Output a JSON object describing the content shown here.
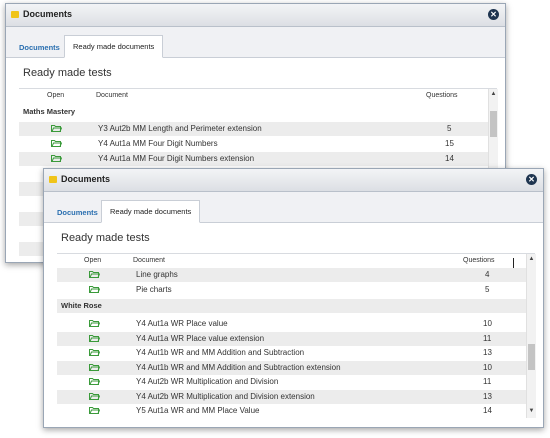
{
  "back_window": {
    "title": "Documents",
    "tabs": [
      {
        "label": "Documents",
        "active": false
      },
      {
        "label": "Ready made documents",
        "active": true
      }
    ],
    "heading": "Ready made tests",
    "columns": {
      "open": "Open",
      "document": "Document",
      "questions": "Questions"
    },
    "group": "Maths Mastery",
    "rows": [
      {
        "document": "Y3 Aut2b MM Length and Perimeter extension",
        "questions": "5"
      },
      {
        "document": "Y4 Aut1a MM Four Digit Numbers",
        "questions": "15"
      },
      {
        "document": "Y4 Aut1a MM Four Digit Numbers extension",
        "questions": "14"
      }
    ]
  },
  "front_window": {
    "title": "Documents",
    "tabs": [
      {
        "label": "Documents",
        "active": false
      },
      {
        "label": "Ready made documents",
        "active": true
      }
    ],
    "heading": "Ready made tests",
    "columns": {
      "open": "Open",
      "document": "Document",
      "questions": "Questions"
    },
    "rows_top": [
      {
        "document": "Line graphs",
        "questions": "4"
      },
      {
        "document": "Pie charts",
        "questions": "5"
      }
    ],
    "group": "White Rose",
    "rows": [
      {
        "document": "Y4 Aut1a WR Place value",
        "questions": "10"
      },
      {
        "document": "Y4 Aut1a WR Place value extension",
        "questions": "11"
      },
      {
        "document": "Y4 Aut1b WR and MM Addition and Subtraction",
        "questions": "13"
      },
      {
        "document": "Y4 Aut1b WR and MM Addition and Subtraction extension",
        "questions": "10"
      },
      {
        "document": "Y4 Aut2b WR Multiplication and Division",
        "questions": "11"
      },
      {
        "document": "Y4 Aut2b WR Multiplication and Division extension",
        "questions": "13"
      },
      {
        "document": "Y5 Aut1a WR and MM Place Value",
        "questions": "14"
      }
    ]
  },
  "colors": {
    "folder": "#3a9a3a",
    "close": "#1f3550",
    "title_icon": "#f0c419"
  },
  "icons": {
    "folder": "folder-open-icon",
    "close": "close-icon",
    "scroll_up": "scroll-up-arrow-icon",
    "scroll_down": "scroll-down-arrow-icon"
  }
}
